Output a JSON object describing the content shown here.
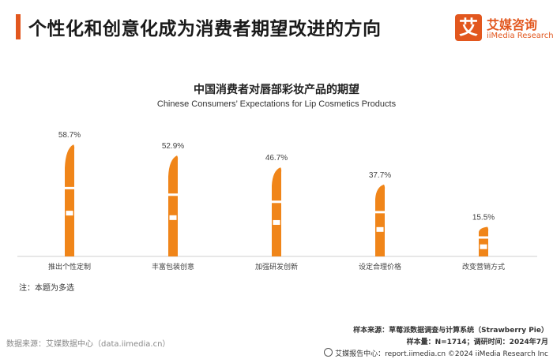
{
  "header": {
    "title": "个性化和创意化成为消费者期望改进的方向",
    "accent_color": "#e2571e"
  },
  "logo": {
    "mark": "艾",
    "name_cn": "艾媒咨询",
    "name_en": "iiMedia Research"
  },
  "chart_data": {
    "type": "bar",
    "title": "中国消费者对唇部彩妆产品的期望",
    "subtitle": "Chinese Consumers’ Expectations for Lip Cosmetics Products",
    "categories": [
      "推出个性定制",
      "丰富包装创意",
      "加强研发创新",
      "设定合理价格",
      "改变营销方式"
    ],
    "values": [
      58.7,
      52.9,
      46.7,
      37.7,
      15.5
    ],
    "value_labels": [
      "58.7%",
      "52.9%",
      "46.7%",
      "37.7%",
      "15.5%"
    ],
    "unit": "%",
    "ylim": [
      0,
      60
    ],
    "grid": false,
    "bar_style": "lipstick",
    "bar_color": "#f08519"
  },
  "notes": {
    "note": "注：本题为多选",
    "data_source": "数据来源：艾媒数据中心（data.iimedia.cn）",
    "sample_source": "样本来源：草莓派数据调查与计算系统（Strawberry Pie）",
    "sample_info": "样本量：N=1714；调研时间：2024年7月",
    "footer": "艾媒报告中心：report.iimedia.cn  ©2024  iiMedia Research  Inc"
  }
}
